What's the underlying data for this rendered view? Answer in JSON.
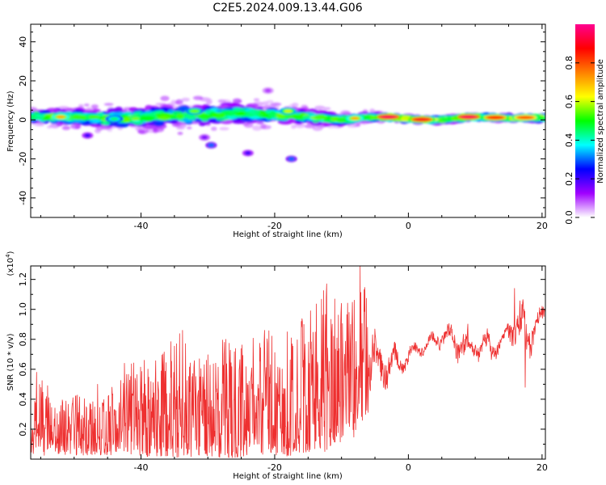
{
  "title": "C2E5.2024.009.13.44.G06",
  "colors": {
    "snr_line": "#ee3030",
    "axis": "#000000"
  },
  "chart_data": [
    {
      "id": "spectrogram",
      "type": "heatmap",
      "xlabel": "Height of straight line (km)",
      "ylabel": "Frequency (Hz)",
      "xlim": [
        -56.5,
        20.5
      ],
      "ylim": [
        -50,
        49
      ],
      "xticks": [
        -40,
        -20,
        0,
        20
      ],
      "xtick_labels": [
        "-40",
        "-20",
        "0",
        "20"
      ],
      "yticks": [
        -40,
        -20,
        0,
        20,
        40
      ],
      "ytick_labels": [
        "-40",
        "-20",
        "0",
        "20",
        "40"
      ],
      "colorbar": {
        "label": "Normalized spectral amplitude",
        "range": [
          0,
          1
        ],
        "ticks": [
          0.0,
          0.2,
          0.4,
          0.6,
          0.8
        ],
        "tick_labels": [
          "0.0",
          "0.2",
          "0.4",
          "0.6",
          "0.8"
        ],
        "colormap": [
          "#ffffff",
          "#a000ff",
          "#0000ff",
          "#00ffff",
          "#00ff00",
          "#ffff00",
          "#ff8000",
          "#ff0000",
          "#ff0090"
        ]
      },
      "band": {
        "center_hz": [
          [
            -56,
            1.5
          ],
          [
            -50,
            1.5
          ],
          [
            -45,
            0.5
          ],
          [
            -40,
            1
          ],
          [
            -35,
            2
          ],
          [
            -30,
            2.5
          ],
          [
            -25,
            3.5
          ],
          [
            -20,
            2.5
          ],
          [
            -15,
            1.5
          ],
          [
            -10,
            0
          ],
          [
            -8,
            0.5
          ],
          [
            -5,
            1.5
          ],
          [
            0,
            0.5
          ],
          [
            5,
            0
          ],
          [
            10,
            1.5
          ],
          [
            15,
            1
          ],
          [
            20,
            1
          ]
        ],
        "halfwidth_hz": [
          [
            -56,
            3
          ],
          [
            -45,
            4.5
          ],
          [
            -35,
            5.5
          ],
          [
            -25,
            4.5
          ],
          [
            -15,
            3.5
          ],
          [
            -8,
            2
          ],
          [
            0,
            1.5
          ],
          [
            20,
            1.5
          ]
        ]
      },
      "hotspots": [
        {
          "x": -3,
          "y": 1.5,
          "v": 0.95
        },
        {
          "x": 2,
          "y": 0.2,
          "v": 0.9
        },
        {
          "x": 9,
          "y": 1.5,
          "v": 0.95
        },
        {
          "x": 13,
          "y": 1.2,
          "v": 0.85
        },
        {
          "x": 17.5,
          "y": 1.2,
          "v": 0.8
        },
        {
          "x": -8,
          "y": 0.8,
          "v": 0.7
        },
        {
          "x": -52,
          "y": 1.5,
          "v": 0.7
        },
        {
          "x": -32,
          "y": 4.5,
          "v": 0.55
        },
        {
          "x": -18,
          "y": 4.5,
          "v": 0.6
        },
        {
          "x": -44,
          "y": 0.5,
          "v": 0.45
        }
      ],
      "outliers": [
        {
          "x": -29.5,
          "y": -13,
          "v": 0.3
        },
        {
          "x": -24,
          "y": -17,
          "v": 0.2
        },
        {
          "x": -17.5,
          "y": -20,
          "v": 0.3
        },
        {
          "x": -30.5,
          "y": -9,
          "v": 0.15
        },
        {
          "x": -21,
          "y": 15,
          "v": 0.1
        },
        {
          "x": -48,
          "y": -8,
          "v": 0.2
        }
      ]
    },
    {
      "id": "snr",
      "type": "line",
      "xlabel": "Height of straight line (km)",
      "ylabel": "SNR (10 * v/v)",
      "y_multiplier": "(x10^4)",
      "y_multiplier_base": "(x10",
      "y_multiplier_exp": "4",
      "y_multiplier_close": ")",
      "xlim": [
        -56.5,
        20.5
      ],
      "ylim": [
        0,
        1.29
      ],
      "xticks": [
        -40,
        -20,
        0,
        20
      ],
      "xtick_labels": [
        "-40",
        "-20",
        "0",
        "20"
      ],
      "yticks": [
        0.2,
        0.4,
        0.6,
        0.8,
        1.0,
        1.2
      ],
      "ytick_labels": [
        "0.2",
        "0.4",
        "0.6",
        "0.8",
        "1.0",
        "1.2"
      ],
      "envelope": [
        [
          -56.5,
          0.04,
          0.26
        ],
        [
          -55,
          0.02,
          0.58
        ],
        [
          -53,
          0.04,
          0.42
        ],
        [
          -50,
          0.02,
          0.44
        ],
        [
          -47,
          0.03,
          0.38
        ],
        [
          -44,
          0.02,
          0.5
        ],
        [
          -42,
          0.02,
          0.64
        ],
        [
          -40,
          0.01,
          0.66
        ],
        [
          -37,
          0.02,
          0.72
        ],
        [
          -34,
          0.01,
          0.86
        ],
        [
          -31,
          0.02,
          0.66
        ],
        [
          -28,
          0.01,
          0.8
        ],
        [
          -25,
          0.01,
          0.8
        ],
        [
          -22,
          0.03,
          0.86
        ],
        [
          -18,
          0.02,
          0.9
        ],
        [
          -15,
          0.05,
          1.0
        ],
        [
          -12,
          0.05,
          1.18
        ],
        [
          -10,
          0.1,
          1.05
        ],
        [
          -8,
          0.15,
          1.1
        ],
        [
          -7,
          0.25,
          1.29
        ],
        [
          -5,
          0.35,
          0.9
        ],
        [
          -3,
          0.45,
          0.84
        ],
        [
          -1,
          0.55,
          0.74
        ],
        [
          1,
          0.65,
          0.8
        ],
        [
          3,
          0.7,
          0.84
        ],
        [
          5,
          0.72,
          0.92
        ],
        [
          7,
          0.65,
          0.92
        ],
        [
          9,
          0.55,
          0.92
        ],
        [
          10,
          0.65,
          0.88
        ],
        [
          12,
          0.55,
          0.9
        ],
        [
          14,
          0.72,
          0.84
        ],
        [
          16,
          0.72,
          1.14
        ],
        [
          17.5,
          0.48,
          1.1
        ],
        [
          19,
          0.8,
          1.0
        ],
        [
          20.5,
          0.85,
          1.05
        ]
      ],
      "peaks": [
        {
          "x": -55.6,
          "y": 0.58
        },
        {
          "x": -46.5,
          "y": 0.5
        },
        {
          "x": -42.5,
          "y": 0.64
        },
        {
          "x": -39.5,
          "y": 0.66
        },
        {
          "x": -33.8,
          "y": 0.86
        },
        {
          "x": -27.5,
          "y": 0.78
        },
        {
          "x": -21.5,
          "y": 0.86
        },
        {
          "x": -16,
          "y": 0.92
        },
        {
          "x": -12.2,
          "y": 1.17
        },
        {
          "x": -10,
          "y": 1.04
        },
        {
          "x": -7.2,
          "y": 1.29
        },
        {
          "x": 15.9,
          "y": 1.14
        },
        {
          "x": 17.5,
          "y": 0.48
        }
      ]
    }
  ]
}
